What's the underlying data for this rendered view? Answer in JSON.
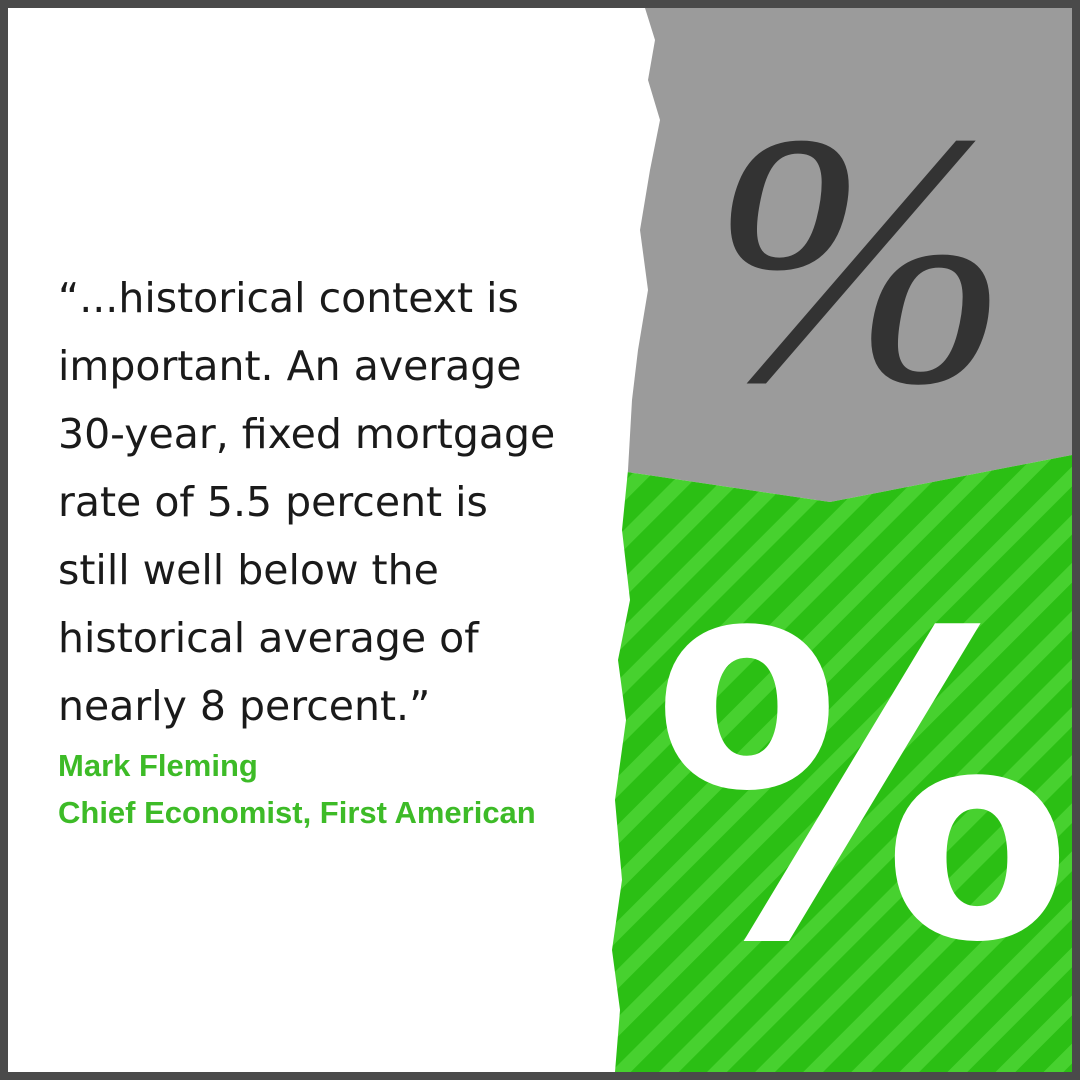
{
  "quote": {
    "lines": [
      "“...historical context is",
      "important. An average",
      "30-year, fixed mortgage",
      "rate of 5.5 percent is",
      "still well below the",
      "historical average of",
      "nearly 8 percent.”"
    ]
  },
  "attribution": {
    "name": "Mark Fleming",
    "title": "Chief Economist, First American"
  },
  "graphics": {
    "top_symbol": "%",
    "bottom_symbol": "%"
  }
}
